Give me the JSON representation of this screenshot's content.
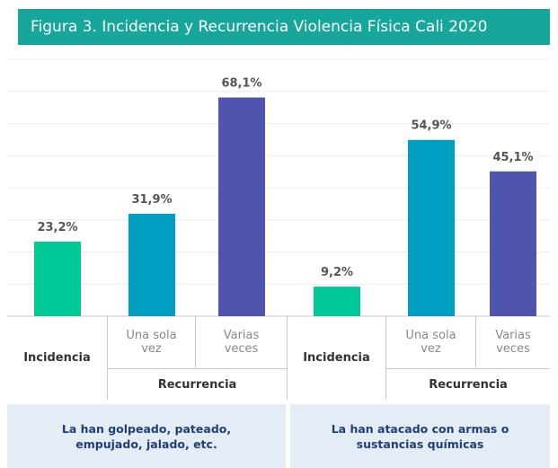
{
  "chart_data": {
    "type": "bar",
    "title": "Figura 3. Incidencia y Recurrencia Violencia Física Cali 2020",
    "categories": [
      "Incidencia",
      "Una sola vez",
      "Varias veces",
      "Incidencia",
      "Una sola vez",
      "Varias veces"
    ],
    "values": [
      23.2,
      31.9,
      68.1,
      9.2,
      54.9,
      45.1
    ],
    "value_labels": [
      "23,2%",
      "31,9%",
      "68,1%",
      "9,2%",
      "54,9%",
      "45,1%"
    ],
    "colors": [
      "#00c896",
      "#009fc2",
      "#4f55ae",
      "#00c896",
      "#009fc2",
      "#4f55ae"
    ],
    "subgroup_labels": [
      "Recurrencia",
      "Recurrencia"
    ],
    "group_labels": [
      "La han golpeado, pateado, empujado, jalado, etc.",
      "La han atacado con armas o sustancias químicas"
    ],
    "ylim": [
      0,
      80
    ],
    "yticks": [
      0,
      10,
      20,
      30,
      40,
      50,
      60,
      70,
      80
    ],
    "grid": true
  }
}
